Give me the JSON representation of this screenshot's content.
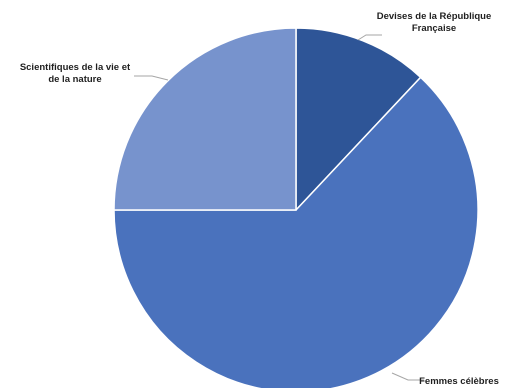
{
  "chart_data": {
    "type": "pie",
    "title": "",
    "start_angle_deg": 0,
    "direction": "clockwise",
    "slices": [
      {
        "label_lines": [
          "Devises de la République",
          "Française"
        ],
        "value": 12,
        "color": "#2e5597"
      },
      {
        "label_lines": [
          "Femmes célèbres"
        ],
        "value": 63,
        "color": "#4a72bd"
      },
      {
        "label_lines": [
          "Scientifiques de la vie et",
          "de la nature"
        ],
        "value": 25,
        "color": "#7793cd"
      }
    ],
    "legend": "none"
  }
}
